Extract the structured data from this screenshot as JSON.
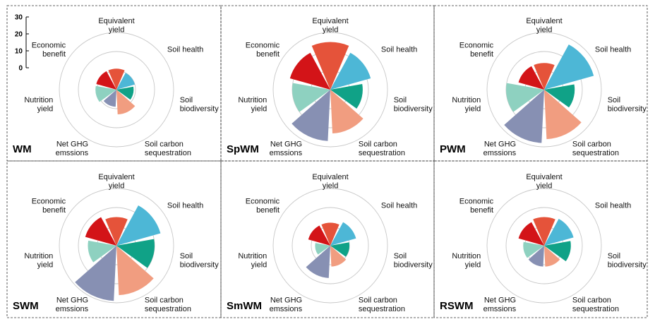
{
  "chart_data": {
    "type": "polar-area",
    "categories": [
      "Equivalent yield",
      "Soil health",
      "Soil biodiversity",
      "Soil carbon sequestration",
      "Net GHG emssions",
      "Nutrition yield",
      "Economic benefit"
    ],
    "category_lines": [
      [
        "Equivalent",
        "yield"
      ],
      [
        "Soil health"
      ],
      [
        "Soil",
        "biodiversity"
      ],
      [
        "Soil carbon",
        "sequestration"
      ],
      [
        "Net GHG",
        "emssions"
      ],
      [
        "Nutrition",
        "yield"
      ],
      [
        "Economic",
        "benefit"
      ]
    ],
    "colors": [
      "#E5533A",
      "#4DB7D6",
      "#10A287",
      "#F19D80",
      "#8790B3",
      "#8ED1C0",
      "#D31418"
    ],
    "radial_ticks": [
      0,
      10,
      20,
      30
    ],
    "rlim": [
      0,
      30
    ],
    "panels": [
      {
        "name": "WM",
        "values": [
          11,
          10,
          9,
          13,
          9,
          11,
          11
        ]
      },
      {
        "name": "SpWM",
        "values": [
          25,
          22,
          17,
          23,
          27,
          20,
          22
        ]
      },
      {
        "name": "PWM",
        "values": [
          14,
          27,
          16,
          26,
          28,
          20,
          14
        ]
      },
      {
        "name": "SWM",
        "values": [
          15,
          24,
          20,
          26,
          29,
          15,
          17
        ]
      },
      {
        "name": "SmWM",
        "values": [
          12,
          14,
          10,
          11,
          17,
          8,
          12
        ]
      },
      {
        "name": "RSWM",
        "values": [
          15,
          16,
          14,
          11,
          11,
          11,
          14
        ]
      }
    ]
  }
}
